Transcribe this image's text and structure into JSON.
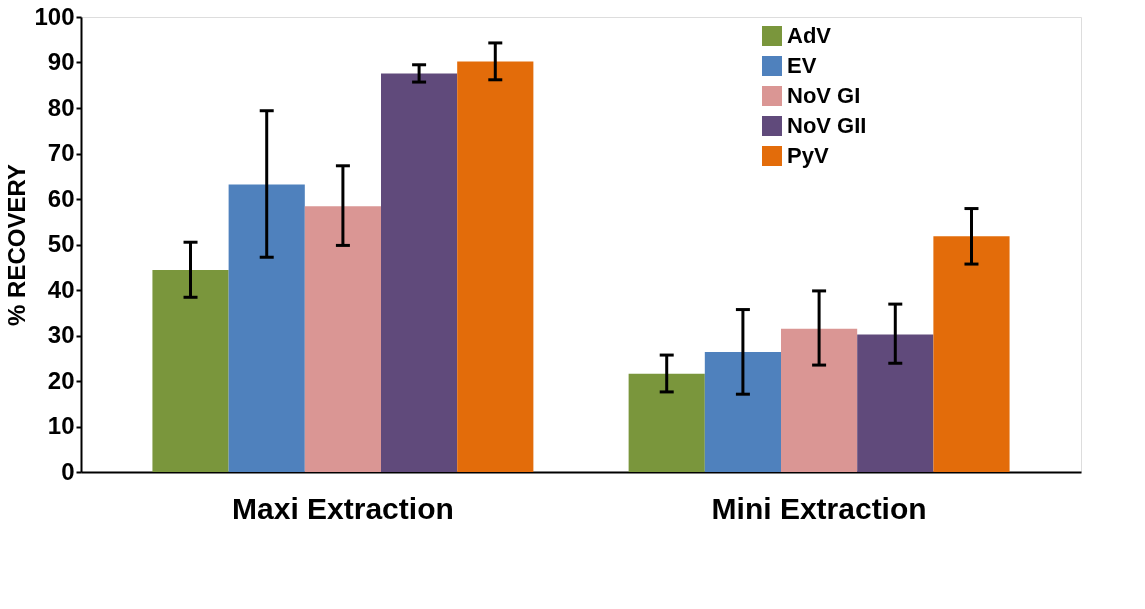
{
  "chart_data": {
    "type": "bar",
    "ylabel": "% RECOVERY",
    "categories": [
      "Maxi Extraction",
      "Mini Extraction"
    ],
    "series": [
      {
        "name": "AdV",
        "color": "#7a963c",
        "values": [
          44.4,
          21.6
        ],
        "errors": [
          [
            38.4,
            50.5
          ],
          [
            17.6,
            25.7
          ]
        ]
      },
      {
        "name": "EV",
        "color": "#4f81bd",
        "values": [
          63.2,
          26.4
        ],
        "errors": [
          [
            47.2,
            79.4
          ],
          [
            17.1,
            35.7
          ]
        ]
      },
      {
        "name": "NoV GI",
        "color": "#da9694",
        "values": [
          58.4,
          31.5
        ],
        "errors": [
          [
            49.8,
            67.3
          ],
          [
            23.5,
            39.8
          ]
        ]
      },
      {
        "name": "NoV GII",
        "color": "#604a7b",
        "values": [
          87.6,
          30.2
        ],
        "errors": [
          [
            85.7,
            89.5
          ],
          [
            23.9,
            36.9
          ]
        ]
      },
      {
        "name": "PyV",
        "color": "#e36c0a",
        "values": [
          90.2,
          51.8
        ],
        "errors": [
          [
            86.2,
            94.3
          ],
          [
            45.7,
            57.9
          ]
        ]
      }
    ],
    "ylim": [
      0,
      100
    ],
    "yticks": [
      0,
      10,
      20,
      30,
      40,
      50,
      60,
      70,
      80,
      90,
      100
    ],
    "grid": false,
    "legend": "top right"
  }
}
